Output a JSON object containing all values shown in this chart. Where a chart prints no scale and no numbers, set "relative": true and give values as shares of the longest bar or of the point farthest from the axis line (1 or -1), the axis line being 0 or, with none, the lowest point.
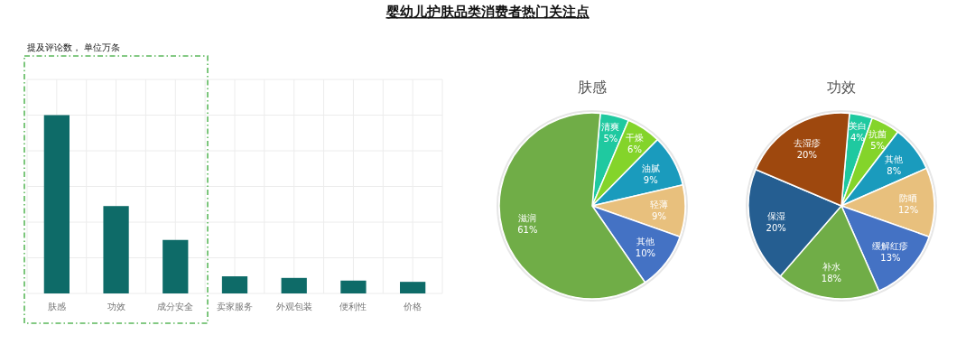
{
  "chart_data": [
    {
      "type": "bar",
      "title": "婴幼儿护肤品类消费者热门关注点",
      "ylabel": "提及评论数， 单位万条",
      "relative": true,
      "grid": true,
      "color": "#0e6b68",
      "categories": [
        "肤感",
        "功效",
        "成分安全",
        "卖家服务",
        "外观包装",
        "便利性",
        "价格"
      ],
      "values": [
        1,
        0.49,
        0.3,
        0.096,
        0.087,
        0.072,
        0.065
      ]
    },
    {
      "type": "pie",
      "title": "肤感",
      "categories": [
        "清爽",
        "干燥",
        "油腻",
        "轻薄",
        "其他",
        "滋润"
      ],
      "values": [
        5,
        6,
        9,
        9,
        10,
        61
      ],
      "colors": [
        "#1fc9a0",
        "#84d42a",
        "#1a9bbd",
        "#e8c07d",
        "#4472c4",
        "#70ad47"
      ],
      "value_labels": [
        "5%",
        "6%",
        "9%",
        "9%",
        "10%",
        "61%"
      ]
    },
    {
      "type": "pie",
      "title": "功效",
      "categories": [
        "美白",
        "抗菌",
        "其他",
        "防晒",
        "缓解红疹",
        "补水",
        "保湿",
        "去湿疹"
      ],
      "values": [
        4,
        5,
        8,
        12,
        13,
        18,
        20,
        20
      ],
      "colors": [
        "#1fc9a0",
        "#84d42a",
        "#1a9bbd",
        "#e8c07d",
        "#4472c4",
        "#70ad47",
        "#255e91",
        "#9e480e"
      ],
      "value_labels": [
        "4%",
        "5%",
        "8%",
        "12%",
        "13%",
        "18%",
        "20%",
        "20%"
      ]
    }
  ]
}
